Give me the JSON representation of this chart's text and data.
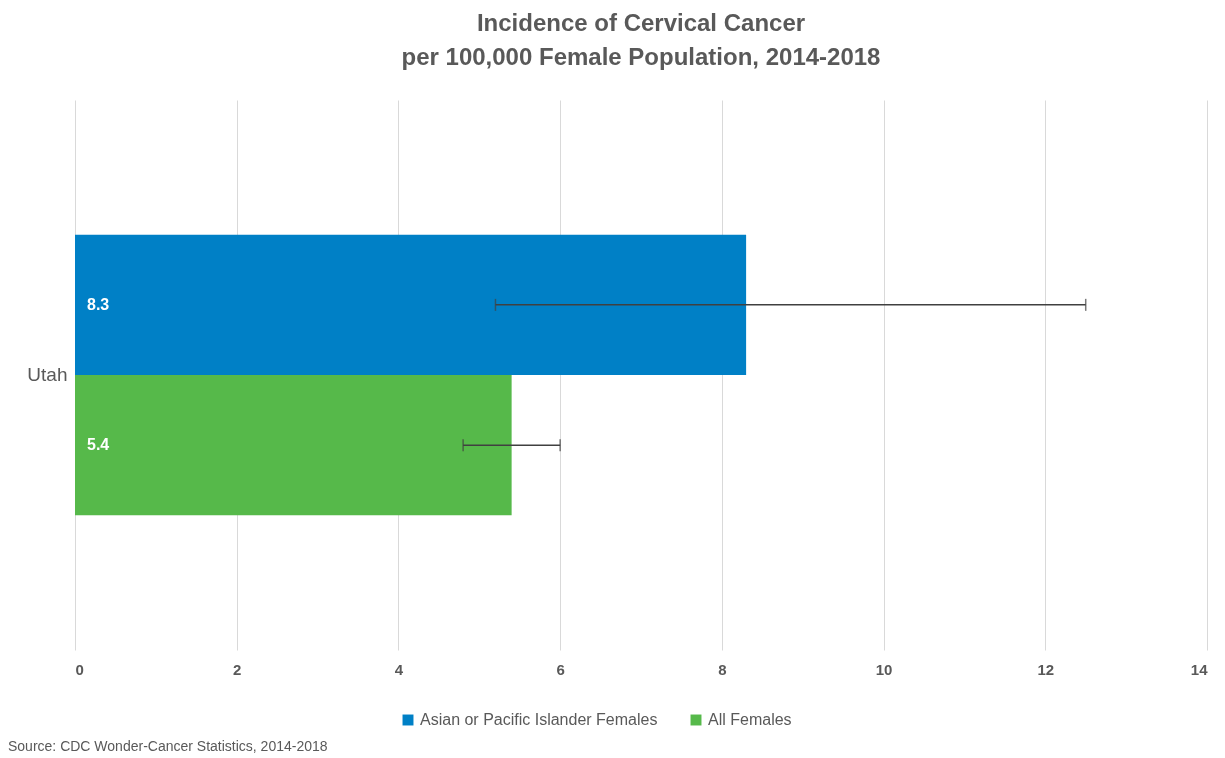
{
  "chart_data": {
    "type": "bar",
    "orientation": "horizontal",
    "title": "Incidence of Cervical Cancer\nper 100,000 Female Population, 2014-2018",
    "categories": [
      "Utah"
    ],
    "series": [
      {
        "name": "Asian or Pacific Islander Females",
        "color": "#0080c6",
        "values": [
          8.3
        ],
        "errors": [
          [
            5.2,
            12.5
          ]
        ]
      },
      {
        "name": "All Females",
        "color": "#56b94a",
        "values": [
          5.4
        ],
        "errors": [
          [
            4.8,
            6.0
          ]
        ]
      }
    ],
    "xlim": [
      0,
      14
    ],
    "xticks": [
      0,
      2,
      4,
      6,
      8,
      10,
      12,
      14
    ],
    "grid": "x",
    "legend": "bottom",
    "data_labels": true,
    "annotations": [
      "Source: CDC Wonder-Cancer Statistics, 2014-2018"
    ]
  }
}
